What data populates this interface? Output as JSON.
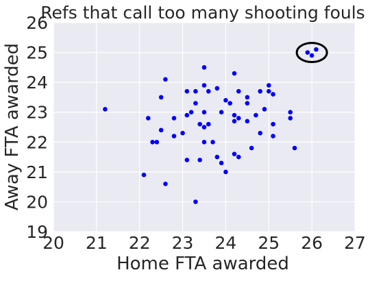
{
  "chart_data": {
    "type": "scatter",
    "title": "Refs that call too  many shooting fouls",
    "xlabel": "Home FTA awarded",
    "ylabel": "Away FTA awarded",
    "xlim": [
      20,
      27
    ],
    "ylim": [
      19,
      26
    ],
    "x_ticks": [
      "20",
      "21",
      "22",
      "23",
      "24",
      "25",
      "26",
      "27"
    ],
    "y_ticks": [
      "19",
      "20",
      "21",
      "22",
      "23",
      "24",
      "25",
      "26"
    ],
    "grid": true,
    "background_color": "#eaeaf2",
    "grid_color": "#ffffff",
    "point_color": "#0000ff",
    "annotation": {
      "shape": "ellipse",
      "center": [
        26.0,
        25.0
      ],
      "rx": 0.35,
      "ry": 0.32,
      "color": "#000000"
    },
    "points": [
      [
        21.2,
        23.1
      ],
      [
        22.1,
        20.9
      ],
      [
        22.2,
        22.8
      ],
      [
        22.3,
        22.0
      ],
      [
        22.4,
        22.0
      ],
      [
        22.5,
        23.5
      ],
      [
        22.5,
        22.4
      ],
      [
        22.6,
        24.1
      ],
      [
        22.6,
        20.6
      ],
      [
        22.8,
        22.2
      ],
      [
        22.8,
        22.8
      ],
      [
        23.0,
        22.3
      ],
      [
        23.1,
        23.7
      ],
      [
        23.1,
        22.9
      ],
      [
        23.1,
        21.4
      ],
      [
        23.2,
        23.0
      ],
      [
        23.3,
        23.7
      ],
      [
        23.3,
        23.3
      ],
      [
        23.3,
        20.0
      ],
      [
        23.4,
        22.6
      ],
      [
        23.4,
        21.4
      ],
      [
        23.5,
        24.5
      ],
      [
        23.5,
        23.9
      ],
      [
        23.5,
        23.0
      ],
      [
        23.5,
        22.5
      ],
      [
        23.5,
        22.0
      ],
      [
        23.6,
        23.7
      ],
      [
        23.6,
        22.6
      ],
      [
        23.7,
        22.0
      ],
      [
        23.8,
        23.8
      ],
      [
        23.8,
        21.5
      ],
      [
        23.9,
        21.3
      ],
      [
        23.9,
        23.0
      ],
      [
        24.0,
        23.4
      ],
      [
        24.0,
        21.0
      ],
      [
        24.1,
        23.3
      ],
      [
        24.2,
        24.3
      ],
      [
        24.2,
        22.9
      ],
      [
        24.2,
        22.7
      ],
      [
        24.2,
        21.6
      ],
      [
        24.3,
        23.7
      ],
      [
        24.3,
        22.8
      ],
      [
        24.3,
        21.5
      ],
      [
        24.5,
        23.5
      ],
      [
        24.5,
        23.3
      ],
      [
        24.5,
        22.7
      ],
      [
        24.6,
        21.8
      ],
      [
        24.7,
        22.9
      ],
      [
        24.8,
        23.7
      ],
      [
        24.8,
        22.3
      ],
      [
        24.9,
        23.1
      ],
      [
        25.0,
        23.9
      ],
      [
        25.0,
        23.7
      ],
      [
        25.1,
        23.6
      ],
      [
        25.1,
        22.6
      ],
      [
        25.1,
        22.2
      ],
      [
        25.5,
        23.0
      ],
      [
        25.5,
        22.8
      ],
      [
        25.6,
        21.8
      ],
      [
        25.9,
        25.0
      ],
      [
        26.0,
        24.9
      ],
      [
        26.1,
        25.1
      ]
    ]
  }
}
